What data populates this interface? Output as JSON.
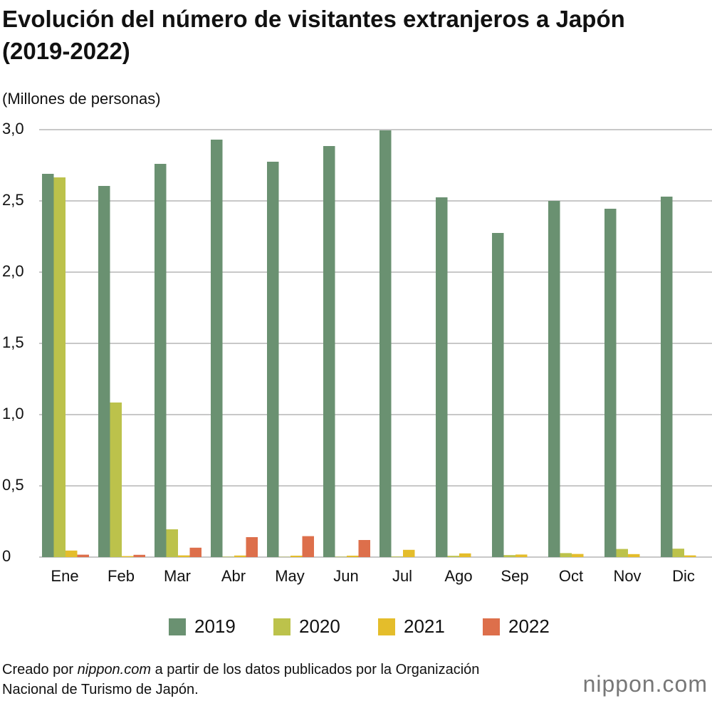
{
  "chart_data": {
    "type": "bar",
    "title": "Evolución del número de visitantes extranjeros a Japón (2019-2022)",
    "y_label": "(Millones de personas)",
    "categories": [
      "Ene",
      "Feb",
      "Mar",
      "Abr",
      "May",
      "Jun",
      "Jul",
      "Ago",
      "Sep",
      "Oct",
      "Nov",
      "Dic"
    ],
    "series": [
      {
        "name": "2019",
        "color": "#6a9171",
        "values": [
          2.69,
          2.605,
          2.76,
          2.93,
          2.775,
          2.885,
          2.995,
          2.525,
          2.275,
          2.5,
          2.445,
          2.53
        ]
      },
      {
        "name": "2020",
        "color": "#bcc24b",
        "values": [
          2.665,
          1.085,
          0.195,
          0.003,
          0.002,
          0.003,
          0.004,
          0.009,
          0.014,
          0.028,
          0.057,
          0.059
        ]
      },
      {
        "name": "2021",
        "color": "#e4bd2b",
        "values": [
          0.046,
          0.007,
          0.012,
          0.011,
          0.01,
          0.01,
          0.051,
          0.026,
          0.018,
          0.022,
          0.021,
          0.012
        ]
      },
      {
        "name": "2022",
        "color": "#dd6f4b",
        "values": [
          0.017,
          0.016,
          0.066,
          0.14,
          0.147,
          0.12,
          null,
          null,
          null,
          null,
          null,
          null
        ]
      }
    ],
    "ylim": [
      0,
      3
    ],
    "yticks": [
      0,
      {
        "value": 0.5,
        "label": "0,5"
      },
      {
        "value": 1,
        "label": "1,0"
      },
      {
        "value": 1.5,
        "label": "1,5"
      },
      {
        "value": 2,
        "label": "2,0"
      },
      {
        "value": 2.5,
        "label": "2,5"
      },
      {
        "value": 3,
        "label": "3,0"
      }
    ],
    "grid": true,
    "source_prefix": "Creado por",
    "source_site": "nippon.com",
    "source_suffix": "a partir de los datos publicados por la Organización Nacional de Turismo de Japón.",
    "logo": "nippon.com"
  }
}
